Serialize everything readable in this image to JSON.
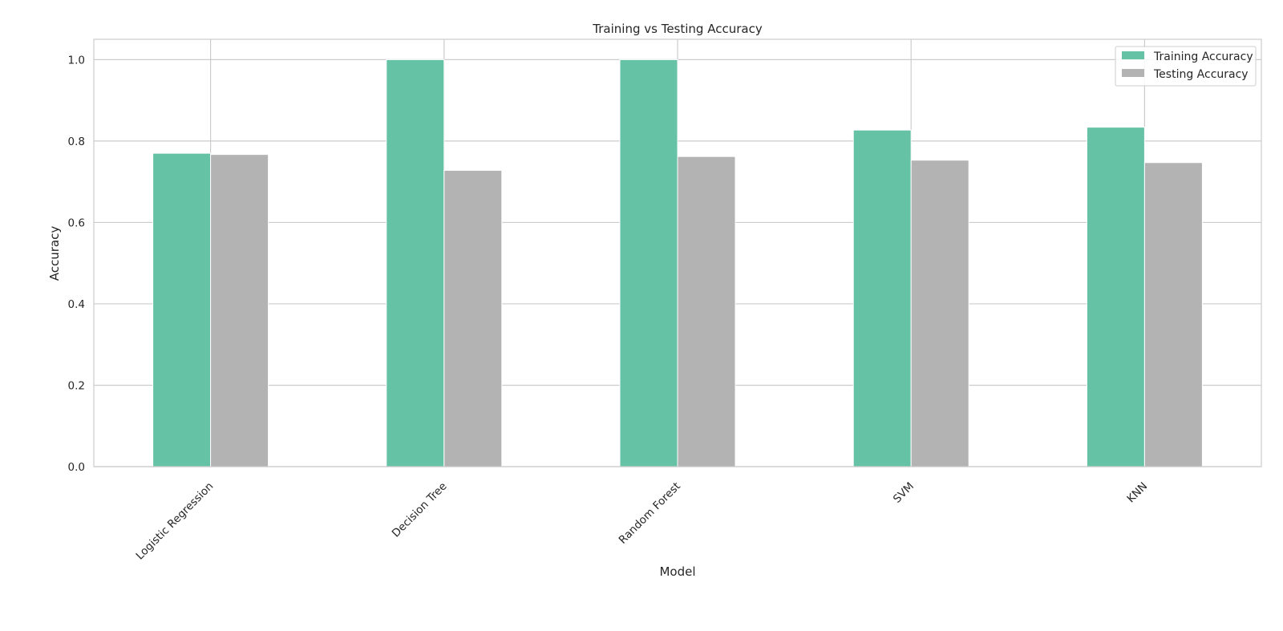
{
  "chart_data": {
    "type": "bar",
    "title": "Training vs Testing Accuracy",
    "xlabel": "Model",
    "ylabel": "Accuracy",
    "categories": [
      "Logistic Regression",
      "Decision Tree",
      "Random Forest",
      "SVM",
      "KNN"
    ],
    "series": [
      {
        "name": "Training Accuracy",
        "color": "#66c2a5",
        "values": [
          0.77,
          1.0,
          1.0,
          0.827,
          0.834
        ]
      },
      {
        "name": "Testing Accuracy",
        "color": "#b3b3b3",
        "values": [
          0.767,
          0.728,
          0.762,
          0.753,
          0.747
        ]
      }
    ],
    "ylim": [
      0,
      1.05
    ],
    "yticks": [
      "0.0",
      "0.2",
      "0.4",
      "0.6",
      "0.8",
      "1.0"
    ],
    "grid": true,
    "legend_position": "top-right"
  }
}
